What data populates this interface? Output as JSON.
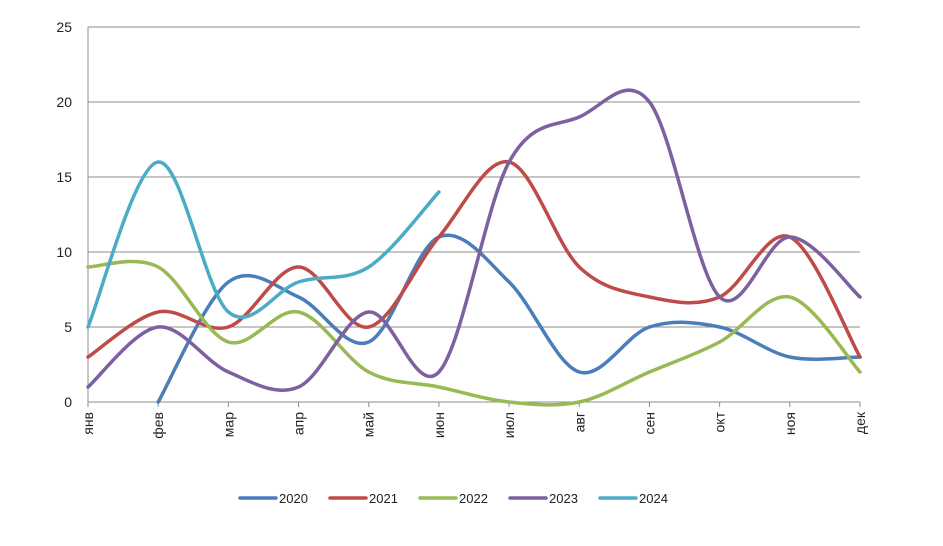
{
  "chart_data": {
    "type": "line",
    "title": "",
    "xlabel": "",
    "ylabel": "",
    "smooth": true,
    "grid": true,
    "legend_position": "bottom",
    "ylim": [
      0,
      25
    ],
    "yticks": [
      "0",
      "5",
      "10",
      "15",
      "20",
      "25"
    ],
    "categories": [
      "янв",
      "фев",
      "мар",
      "апр",
      "май",
      "июн",
      "июл",
      "авг",
      "сен",
      "окт",
      "ноя",
      "дек"
    ],
    "series": [
      {
        "name": "2020",
        "color": "#4A7EBB",
        "values": [
          null,
          0,
          8,
          7,
          4,
          11,
          8,
          2,
          5,
          5,
          3,
          3
        ]
      },
      {
        "name": "2021",
        "color": "#BE4B48",
        "values": [
          3,
          6,
          5,
          9,
          5,
          11,
          16,
          9,
          7,
          7,
          11,
          3
        ]
      },
      {
        "name": "2022",
        "color": "#98B954",
        "values": [
          9,
          9,
          4,
          6,
          2,
          1,
          0,
          0,
          2,
          4,
          7,
          2
        ]
      },
      {
        "name": "2023",
        "color": "#7D60A0",
        "values": [
          1,
          5,
          2,
          1,
          6,
          2,
          16,
          19,
          20,
          7,
          11,
          7
        ]
      },
      {
        "name": "2024",
        "color": "#4BACC6",
        "values": [
          5,
          16,
          6,
          8,
          9,
          14,
          null,
          null,
          null,
          null,
          null,
          null
        ]
      }
    ]
  }
}
